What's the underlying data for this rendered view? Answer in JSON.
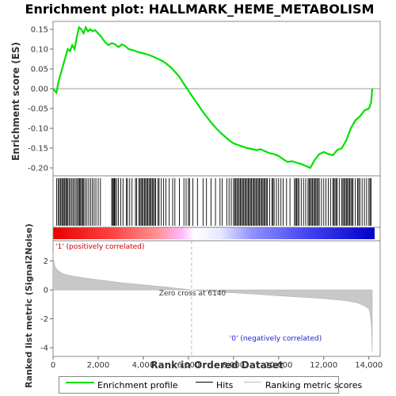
{
  "chart_data": [
    {
      "type": "line",
      "title": "Enrichment plot: HALLMARK_HEME_METABOLISM",
      "ylabel": "Enrichment score (ES)",
      "xlim": [
        0,
        14500
      ],
      "ylim": [
        -0.22,
        0.17
      ],
      "yticks": [
        -0.2,
        -0.15,
        -0.1,
        -0.05,
        0.0,
        0.05,
        0.1,
        0.15
      ],
      "series": [
        {
          "name": "Enrichment profile",
          "color": "#00e000",
          "x": [
            0,
            150,
            250,
            350,
            450,
            550,
            650,
            750,
            850,
            950,
            1050,
            1150,
            1250,
            1350,
            1450,
            1550,
            1650,
            1750,
            1850,
            2000,
            2150,
            2300,
            2450,
            2600,
            2750,
            2900,
            3050,
            3200,
            3350,
            3500,
            3650,
            3800,
            3950,
            4100,
            4250,
            4400,
            4550,
            4700,
            4850,
            5000,
            5200,
            5400,
            5600,
            5800,
            6000,
            6200,
            6400,
            6600,
            6800,
            7000,
            7200,
            7400,
            7600,
            7800,
            8000,
            8200,
            8400,
            8600,
            8800,
            9000,
            9200,
            9400,
            9600,
            9800,
            10000,
            10200,
            10400,
            10600,
            10800,
            11000,
            11200,
            11400,
            11600,
            11800,
            12000,
            12200,
            12400,
            12600,
            12800,
            13000,
            13200,
            13400,
            13600,
            13800,
            14000,
            14100,
            14150
          ],
          "y": [
            0.0,
            -0.01,
            0.02,
            0.04,
            0.06,
            0.08,
            0.1,
            0.095,
            0.11,
            0.1,
            0.13,
            0.155,
            0.15,
            0.14,
            0.155,
            0.145,
            0.15,
            0.145,
            0.148,
            0.14,
            0.13,
            0.118,
            0.11,
            0.115,
            0.112,
            0.105,
            0.112,
            0.108,
            0.1,
            0.098,
            0.095,
            0.092,
            0.09,
            0.088,
            0.085,
            0.082,
            0.078,
            0.074,
            0.07,
            0.064,
            0.055,
            0.043,
            0.03,
            0.012,
            -0.005,
            -0.022,
            -0.038,
            -0.055,
            -0.07,
            -0.085,
            -0.098,
            -0.11,
            -0.12,
            -0.13,
            -0.138,
            -0.142,
            -0.146,
            -0.15,
            -0.152,
            -0.155,
            -0.153,
            -0.158,
            -0.163,
            -0.165,
            -0.17,
            -0.178,
            -0.185,
            -0.183,
            -0.187,
            -0.19,
            -0.195,
            -0.2,
            -0.18,
            -0.165,
            -0.16,
            -0.165,
            -0.168,
            -0.155,
            -0.15,
            -0.13,
            -0.1,
            -0.08,
            -0.07,
            -0.055,
            -0.05,
            -0.035,
            0.0
          ]
        }
      ]
    },
    {
      "type": "area",
      "ylabel": "Ranked list metric (Signal2Noise)",
      "xlabel": "Rank in Ordered Dataset",
      "xlim": [
        0,
        14500
      ],
      "ylim": [
        -4.6,
        3.4
      ],
      "xticks": [
        0,
        2000,
        4000,
        6000,
        8000,
        10000,
        12000,
        14000
      ],
      "xtick_labels": [
        "0",
        "2,000",
        "4,000",
        "6,000",
        "8,000",
        "10,000",
        "12,000",
        "14,000"
      ],
      "yticks": [
        -4,
        -2,
        0,
        2
      ],
      "series": [
        {
          "name": "Ranking metric scores",
          "color": "#c8c8c8",
          "x": [
            0,
            30,
            80,
            150,
            250,
            400,
            600,
            900,
            1300,
            2000,
            3000,
            4000,
            5000,
            6140,
            7000,
            8000,
            9000,
            10000,
            11000,
            12000,
            13000,
            13500,
            13800,
            14000,
            14050,
            14100,
            14130,
            14150
          ],
          "y": [
            2.5,
            2.0,
            1.65,
            1.45,
            1.3,
            1.15,
            1.05,
            0.95,
            0.85,
            0.7,
            0.5,
            0.35,
            0.2,
            0.0,
            -0.1,
            -0.2,
            -0.3,
            -0.4,
            -0.5,
            -0.6,
            -0.75,
            -0.9,
            -1.1,
            -1.3,
            -1.6,
            -2.2,
            -3.2,
            -4.3
          ]
        }
      ],
      "annotations": {
        "zero_cross": "Zero cross at 6140",
        "zero_cross_x": 6140,
        "pos_label": "'1' (positively correlated)",
        "neg_label": "'0' (negatively correlated)"
      }
    }
  ],
  "hits": [
    160,
    230,
    280,
    330,
    390,
    420,
    480,
    520,
    570,
    610,
    660,
    720,
    780,
    840,
    900,
    960,
    1020,
    1080,
    1130,
    1180,
    1220,
    1270,
    1310,
    1360,
    1420,
    1500,
    1580,
    1660,
    1740,
    1820,
    1900,
    2000,
    2100,
    2600,
    2640,
    2680,
    2720,
    2760,
    2820,
    2900,
    3000,
    3100,
    3250,
    3300,
    3400,
    3500,
    3650,
    3700,
    3800,
    3850,
    3900,
    3950,
    4000,
    4050,
    4100,
    4150,
    4200,
    4250,
    4300,
    4350,
    4400,
    4450,
    4500,
    4550,
    4650,
    4700,
    4800,
    4900,
    5000,
    5150,
    5300,
    5400,
    5600,
    5800,
    5900,
    6000,
    6050,
    6200,
    6400,
    6650,
    6800,
    7000,
    7200,
    7400,
    7500,
    7700,
    7800,
    7900,
    8000,
    8050,
    8100,
    8150,
    8200,
    8250,
    8300,
    8350,
    8400,
    8450,
    8500,
    8550,
    8600,
    8650,
    8700,
    8750,
    8800,
    8850,
    8900,
    8950,
    9000,
    9050,
    9100,
    9150,
    9200,
    9250,
    9300,
    9350,
    9400,
    9450,
    9500,
    9600,
    9700,
    9750,
    9800,
    9900,
    10000,
    10100,
    10200,
    10350,
    10500,
    10700,
    10750,
    10800,
    10850,
    10900,
    11000,
    11100,
    11200,
    11300,
    11350,
    11400,
    11450,
    11500,
    11550,
    11600,
    11650,
    11700,
    11750,
    11800,
    11900,
    12000,
    12100,
    12200,
    12300,
    12400,
    12450,
    12500,
    12550,
    12600,
    12700,
    12800,
    12850,
    12900,
    12950,
    13000,
    13050,
    13100,
    13150,
    13200,
    13250,
    13300,
    13400,
    13500,
    13550,
    13600,
    13700,
    13800,
    13900,
    14000,
    14050,
    14100
  ],
  "legend": {
    "enrichment": "Enrichment profile",
    "hits": "Hits",
    "ranking": "Ranking metric scores"
  }
}
